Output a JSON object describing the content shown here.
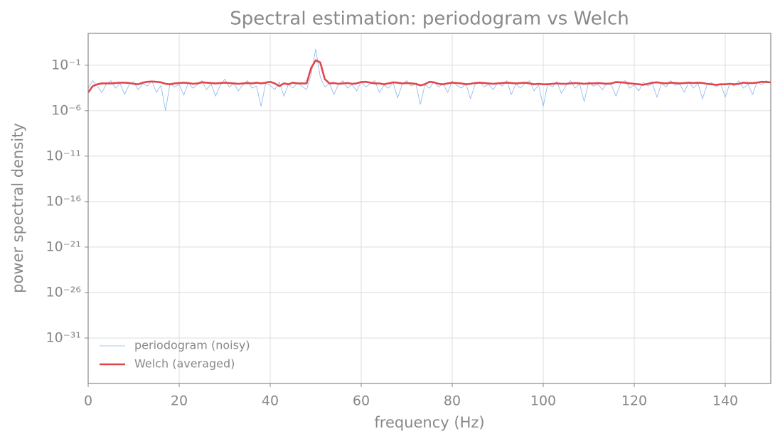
{
  "chart_data": {
    "type": "line",
    "title": "Spectral estimation: periodogram vs Welch",
    "xlabel": "frequency (Hz)",
    "ylabel": "power spectral density",
    "log_y": true,
    "grid": true,
    "legend": "lower left",
    "xlim": [
      0,
      150
    ],
    "xticks": [
      0,
      20,
      40,
      60,
      80,
      100,
      120,
      140
    ],
    "ylim": [
      1e-36,
      316
    ],
    "yticks": [
      {
        "value": 1e-31,
        "label": "10⁻³¹"
      },
      {
        "value": 1e-26,
        "label": "10⁻²⁶"
      },
      {
        "value": 1e-21,
        "label": "10⁻²¹"
      },
      {
        "value": 1e-16,
        "label": "10⁻¹⁶"
      },
      {
        "value": 1e-11,
        "label": "10⁻¹¹"
      },
      {
        "value": 1e-06,
        "label": "10⁻⁶"
      },
      {
        "value": 0.1,
        "label": "10⁻¹"
      }
    ],
    "x": [
      0,
      1,
      2,
      3,
      4,
      5,
      6,
      7,
      8,
      9,
      10,
      11,
      12,
      13,
      14,
      15,
      16,
      17,
      18,
      19,
      20,
      21,
      22,
      23,
      24,
      25,
      26,
      27,
      28,
      29,
      30,
      31,
      32,
      33,
      34,
      35,
      36,
      37,
      38,
      39,
      40,
      41,
      42,
      43,
      44,
      45,
      46,
      47,
      48,
      49,
      50,
      51,
      52,
      53,
      54,
      55,
      56,
      57,
      58,
      59,
      60,
      61,
      62,
      63,
      64,
      65,
      66,
      67,
      68,
      69,
      70,
      71,
      72,
      73,
      74,
      75,
      76,
      77,
      78,
      79,
      80,
      81,
      82,
      83,
      84,
      85,
      86,
      87,
      88,
      89,
      90,
      91,
      92,
      93,
      94,
      95,
      96,
      97,
      98,
      99,
      100,
      101,
      102,
      103,
      104,
      105,
      106,
      107,
      108,
      109,
      110,
      111,
      112,
      113,
      114,
      115,
      116,
      117,
      118,
      119,
      120,
      121,
      122,
      123,
      124,
      125,
      126,
      127,
      128,
      129,
      130,
      131,
      132,
      133,
      134,
      135,
      136,
      137,
      138,
      139,
      140,
      141,
      142,
      143,
      144,
      145,
      146,
      147,
      148,
      149,
      150
    ],
    "series": [
      {
        "name": "periodogram (noisy)",
        "color": "#8ab4f0",
        "width": 0.8,
        "values": [
          0.0003,
          0.002,
          0.0005,
          0.0001,
          0.0008,
          0.002,
          0.0003,
          0.001,
          6e-05,
          0.0007,
          0.0015,
          0.0002,
          0.0009,
          0.0005,
          0.002,
          0.0001,
          0.0006,
          1e-06,
          0.001,
          0.0004,
          0.0008,
          5e-05,
          0.0012,
          0.0003,
          0.0007,
          0.002,
          0.0002,
          0.0009,
          4e-05,
          0.0006,
          0.003,
          0.0004,
          0.001,
          0.00015,
          0.0007,
          0.002,
          0.0003,
          0.0005,
          3e-06,
          0.001,
          0.0006,
          0.0002,
          0.0015,
          4e-05,
          0.0008,
          0.0003,
          0.0012,
          0.0005,
          0.0002,
          0.01,
          6,
          0.005,
          0.0004,
          0.001,
          6e-05,
          0.0008,
          0.002,
          0.0003,
          0.0007,
          0.00015,
          0.0015,
          0.0004,
          0.0009,
          0.002,
          0.0001,
          0.0006,
          0.0003,
          0.0012,
          2.5e-05,
          0.0008,
          0.002,
          0.0005,
          0.001,
          5e-06,
          0.0007,
          0.0003,
          0.0015,
          0.0004,
          0.0009,
          0.0001,
          0.0018,
          0.0006,
          0.0003,
          0.001,
          2e-05,
          0.0007,
          0.0015,
          0.0004,
          0.0008,
          0.0002,
          0.0012,
          0.0005,
          0.002,
          6e-05,
          0.0009,
          0.0003,
          0.001,
          0.002,
          0.00015,
          0.0007,
          3e-06,
          0.001,
          0.0004,
          0.0016,
          8e-05,
          0.0006,
          0.002,
          0.0003,
          0.0009,
          1e-05,
          0.0015,
          0.0005,
          0.0008,
          0.0002,
          0.0012,
          0.0006,
          4e-05,
          0.001,
          0.002,
          0.0003,
          0.0007,
          0.00015,
          0.0013,
          0.0005,
          0.0009,
          3e-05,
          0.001,
          0.0004,
          0.002,
          0.0006,
          0.0008,
          0.0001,
          0.0015,
          0.0003,
          0.001,
          2e-05,
          0.0007,
          0.0012,
          0.0004,
          0.0009,
          3e-05,
          0.001,
          0.0005,
          0.002,
          0.0003,
          0.0008,
          6e-05,
          0.0015,
          0.0007,
          0.002,
          0.001
        ]
      },
      {
        "name": "Welch (averaged)",
        "color": "#e0464b",
        "width": 2.6,
        "values": [
          0.0001,
          0.0005,
          0.0008,
          0.001,
          0.001,
          0.001,
          0.0011,
          0.0012,
          0.0012,
          0.0011,
          0.0009,
          0.0008,
          0.0012,
          0.0015,
          0.0016,
          0.0015,
          0.0013,
          0.0009,
          0.0008,
          0.001,
          0.0011,
          0.0012,
          0.0011,
          0.0009,
          0.001,
          0.0013,
          0.0012,
          0.0011,
          0.001,
          0.0011,
          0.0012,
          0.0011,
          0.001,
          0.0009,
          0.001,
          0.0011,
          0.001,
          0.0012,
          0.001,
          0.0012,
          0.0015,
          0.001,
          0.0005,
          0.001,
          0.0008,
          0.0012,
          0.001,
          0.001,
          0.001,
          0.05,
          0.35,
          0.2,
          0.003,
          0.001,
          0.0011,
          0.0009,
          0.001,
          0.0011,
          0.0009,
          0.001,
          0.0014,
          0.0015,
          0.0012,
          0.001,
          0.001,
          0.0008,
          0.001,
          0.0013,
          0.0012,
          0.001,
          0.0011,
          0.001,
          0.0009,
          0.0006,
          0.0008,
          0.0015,
          0.0013,
          0.0009,
          0.0008,
          0.001,
          0.0012,
          0.0011,
          0.001,
          0.0008,
          0.0009,
          0.0011,
          0.0012,
          0.0011,
          0.001,
          0.0009,
          0.001,
          0.0011,
          0.0012,
          0.0011,
          0.001,
          0.0011,
          0.0012,
          0.001,
          0.0008,
          0.0009,
          0.0008,
          0.0008,
          0.0009,
          0.001,
          0.0009,
          0.0009,
          0.001,
          0.0011,
          0.001,
          0.0009,
          0.001,
          0.001,
          0.0011,
          0.001,
          0.0009,
          0.001,
          0.0014,
          0.0013,
          0.0012,
          0.001,
          0.0009,
          0.0008,
          0.0007,
          0.0009,
          0.0012,
          0.0013,
          0.0011,
          0.001,
          0.0012,
          0.0011,
          0.001,
          0.0011,
          0.0012,
          0.0011,
          0.0012,
          0.0011,
          0.0009,
          0.0008,
          0.0007,
          0.0008,
          0.0008,
          0.0009,
          0.0008,
          0.0009,
          0.0012,
          0.0011,
          0.0011,
          0.0012,
          0.0015,
          0.0014,
          0.0013
        ]
      }
    ]
  }
}
